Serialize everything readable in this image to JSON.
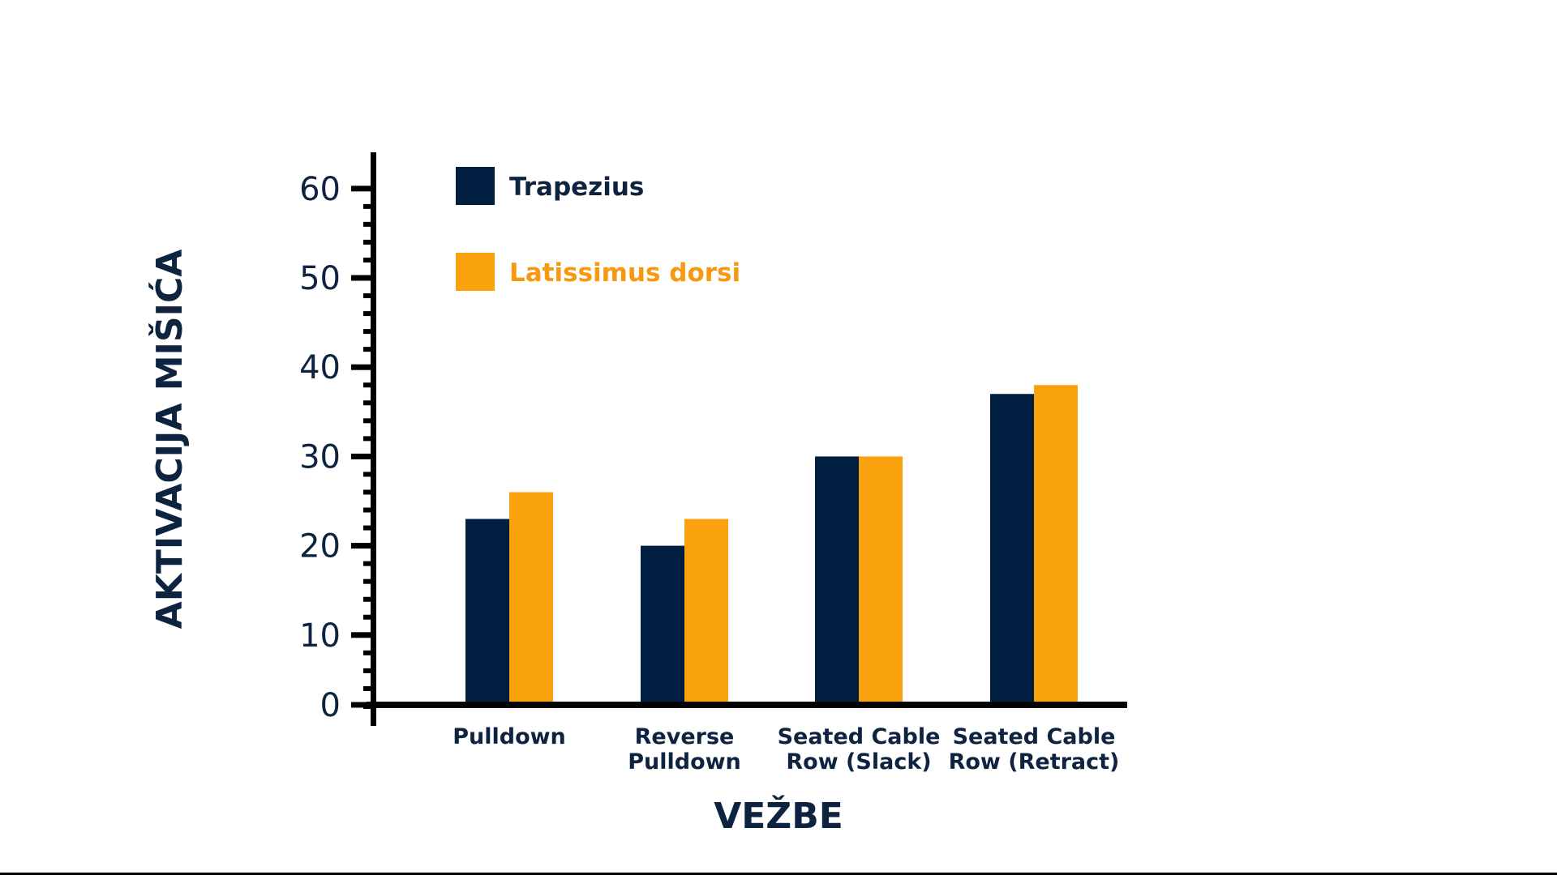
{
  "chart_data": {
    "type": "bar",
    "title": "",
    "xlabel": "VEŽBE",
    "ylabel": "AKTIVACIJA MIŠIĆA",
    "ylim": [
      0,
      60
    ],
    "yticks": [
      "0",
      "10",
      "20",
      "30",
      "40",
      "50",
      "60"
    ],
    "categories": [
      [
        "Pulldown"
      ],
      [
        "Reverse",
        "Pulldown"
      ],
      [
        "Seated Cable",
        "Row (Slack)"
      ],
      [
        "Seated Cable",
        "Row (Retract)"
      ]
    ],
    "series": [
      {
        "name": "Trapezius",
        "color": "#001f40",
        "values": [
          23,
          20,
          30,
          37
        ]
      },
      {
        "name": "Latissimus dorsi",
        "color": "#faa20e",
        "values": [
          26,
          23,
          30,
          38
        ]
      }
    ],
    "legend_text_colors": [
      "#0e2340",
      "#f7980f"
    ],
    "legend_position": "top-left",
    "grid": false
  }
}
